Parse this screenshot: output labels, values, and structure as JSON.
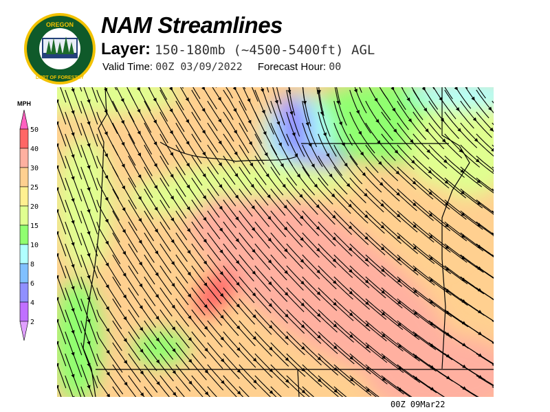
{
  "logo": {
    "text_top": "OREGON",
    "text_bottom": "DEPARTMENT OF FORESTRY"
  },
  "header": {
    "title": "NAM Streamlines",
    "layer_label": "Layer:",
    "layer_value": "150-180mb (~4500-5400ft) AGL",
    "valid_time_label": "Valid Time:",
    "valid_time_value": "00Z 03/09/2022",
    "forecast_hour_label": "Forecast Hour:",
    "forecast_hour_value": "00"
  },
  "colorbar": {
    "unit": "MPH",
    "labels": [
      "50",
      "40",
      "30",
      "25",
      "20",
      "15",
      "10",
      "8",
      "6",
      "4",
      "2"
    ],
    "colors": [
      "#ff6666",
      "#ffb0a0",
      "#ffd090",
      "#fff090",
      "#e0ff90",
      "#90ff70",
      "#b0ffff",
      "#80c0ff",
      "#9090ff",
      "#c070ff"
    ],
    "top_extend_color": "#ff60c0",
    "bottom_extend_color": "#e0a0ff"
  },
  "footer": {
    "timestamp": "00Z 09Mar22"
  }
}
